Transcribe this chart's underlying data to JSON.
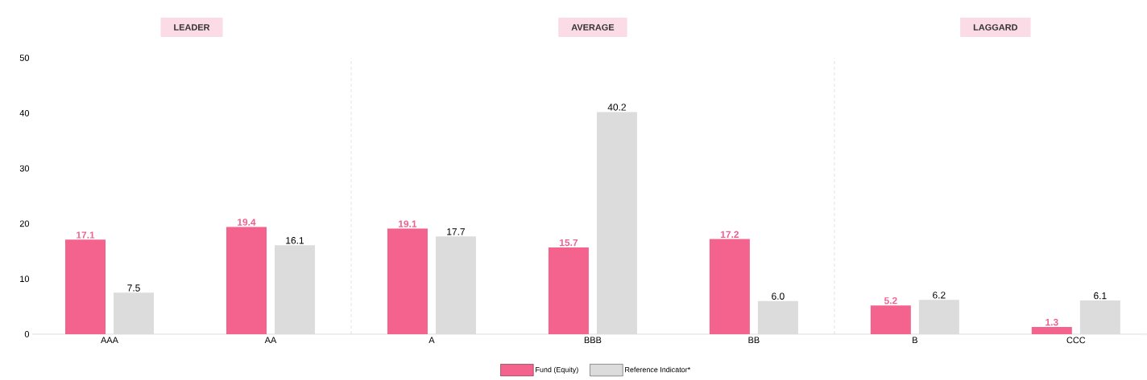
{
  "chart_data": {
    "type": "bar",
    "categories": [
      "AAA",
      "AA",
      "A",
      "BBB",
      "BB",
      "B",
      "CCC"
    ],
    "series": [
      {
        "name": "Fund (Equity)",
        "color": "#f4628e",
        "values": [
          17.1,
          19.4,
          19.1,
          15.7,
          17.2,
          5.2,
          1.3
        ],
        "value_labels": [
          "17.1",
          "19.4",
          "19.1",
          "15.7",
          "17.2",
          "5.2",
          "1.3"
        ]
      },
      {
        "name": "Reference Indicator*",
        "color": "#dcdcdc",
        "values": [
          7.5,
          16.1,
          17.7,
          40.2,
          6.0,
          6.2,
          6.1
        ],
        "value_labels": [
          "7.5",
          "16.1",
          "17.7",
          "40.2",
          "6.0",
          "6.2",
          "6.1"
        ]
      }
    ],
    "ylim": [
      0,
      50
    ],
    "yticks": [
      0,
      10,
      20,
      30,
      40,
      50
    ],
    "legend": "bottom",
    "annotations": [
      "LEADER",
      "AVERAGE",
      "LAGGARD"
    ]
  }
}
